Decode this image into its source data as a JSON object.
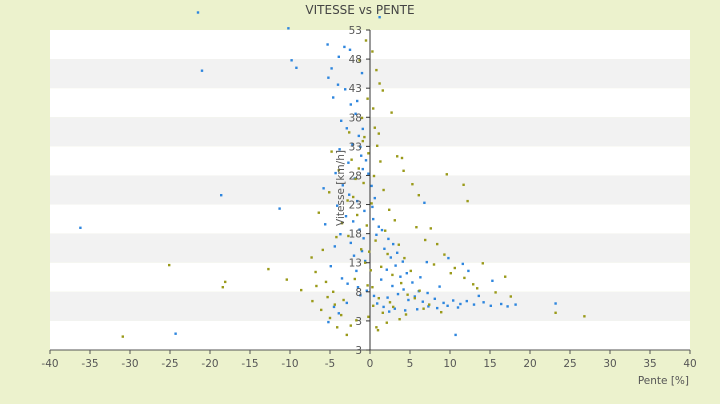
{
  "colors": {
    "background": "#ecf2cd",
    "band_light": "#ffffff",
    "band_dark": "#f2f2f2",
    "axis": "#555555",
    "axis_center": "#333333",
    "text": "#555555",
    "title_text": "#444444",
    "series_blue": "#2e86de",
    "series_olive": "#9a9a1a"
  },
  "chart_data": {
    "type": "scatter",
    "title": "VITESSE vs PENTE",
    "xlabel": "Pente [%]",
    "ylabel": "Vitesse [km/h]",
    "xlim": [
      -40,
      40
    ],
    "x_ticks": [
      "-40",
      "-35",
      "-30",
      "-25",
      "-20",
      "-15",
      "-10",
      "-5",
      "0",
      "5",
      "10",
      "15",
      "20",
      "25",
      "30",
      "35",
      "40"
    ],
    "y_ticks": [
      "3",
      "3",
      "8",
      "13",
      "18",
      "23",
      "28",
      "33",
      "38",
      "43",
      "48",
      "53"
    ],
    "series": [
      {
        "color_key": "series_blue",
        "points": [
          [
            -21.5,
            56
          ],
          [
            -10.2,
            53.3
          ],
          [
            1.2,
            55.2
          ],
          [
            -21,
            46
          ],
          [
            -9.8,
            47.8
          ],
          [
            -9.2,
            46.5
          ],
          [
            -5.3,
            50.5
          ],
          [
            -3.2,
            50.1
          ],
          [
            -2.5,
            49.6
          ],
          [
            -3.9,
            48.4
          ],
          [
            -4.8,
            46.4
          ],
          [
            -5.2,
            44.8
          ],
          [
            -4.0,
            43.6
          ],
          [
            -3.1,
            42.8
          ],
          [
            -4.6,
            41.4
          ],
          [
            -2.4,
            40.2
          ],
          [
            -1.8,
            38.6
          ],
          [
            -3.6,
            37.4
          ],
          [
            -2.9,
            36.1
          ],
          [
            -1.4,
            34.8
          ],
          [
            -2.2,
            33.3
          ],
          [
            -3.8,
            32.5
          ],
          [
            -1.1,
            31.4
          ],
          [
            -2.7,
            30.2
          ],
          [
            -0.9,
            29.1
          ],
          [
            -4.3,
            28.4
          ],
          [
            -1.9,
            27.5
          ],
          [
            -3.4,
            26.3
          ],
          [
            -5.8,
            25.8
          ],
          [
            -2.6,
            24.7
          ],
          [
            -1.6,
            23.6
          ],
          [
            -4.1,
            22.8
          ],
          [
            -0.7,
            21.9
          ],
          [
            -3.0,
            21.0
          ],
          [
            -2.1,
            20.1
          ],
          [
            -5.6,
            19.6
          ],
          [
            -1.3,
            18.7
          ],
          [
            -3.7,
            17.9
          ],
          [
            -0.8,
            17.2
          ],
          [
            -2.4,
            16.4
          ],
          [
            -4.4,
            15.8
          ],
          [
            -1.0,
            15.0
          ],
          [
            0.4,
            20.5
          ],
          [
            1.1,
            19.2
          ],
          [
            0.8,
            17.8
          ],
          [
            1.5,
            18.6
          ],
          [
            2.3,
            17.1
          ],
          [
            2.9,
            16.2
          ],
          [
            1.8,
            15.4
          ],
          [
            3.4,
            14.7
          ],
          [
            2.6,
            13.9
          ],
          [
            4.1,
            13.2
          ],
          [
            3.2,
            12.5
          ],
          [
            2.1,
            11.8
          ],
          [
            4.6,
            11.2
          ],
          [
            3.8,
            10.6
          ],
          [
            1.4,
            10.1
          ],
          [
            5.3,
            9.6
          ],
          [
            2.8,
            9.0
          ],
          [
            4.2,
            8.4
          ],
          [
            6.1,
            8.1
          ],
          [
            3.5,
            7.6
          ],
          [
            5.6,
            7.2
          ],
          [
            7.2,
            7.8
          ],
          [
            2.2,
            7.0
          ],
          [
            4.8,
            6.6
          ],
          [
            6.6,
            6.3
          ],
          [
            8.1,
            6.8
          ],
          [
            9.2,
            6.1
          ],
          [
            10.4,
            6.5
          ],
          [
            11.3,
            5.9
          ],
          [
            12.1,
            6.4
          ],
          [
            13.0,
            5.8
          ],
          [
            14.2,
            6.2
          ],
          [
            15.1,
            5.6
          ],
          [
            16.4,
            5.9
          ],
          [
            17.2,
            5.5
          ],
          [
            18.2,
            5.8
          ],
          [
            23.2,
            6.0
          ],
          [
            11.0,
            5.3
          ],
          [
            9.7,
            5.6
          ],
          [
            8.4,
            5.2
          ],
          [
            7.3,
            5.5
          ],
          [
            5.9,
            5.0
          ],
          [
            4.4,
            4.8
          ],
          [
            3.1,
            5.1
          ],
          [
            2.4,
            4.6
          ],
          [
            1.7,
            5.4
          ],
          [
            0.9,
            6.0
          ],
          [
            0.5,
            7.3
          ],
          [
            -0.4,
            8.2
          ],
          [
            -1.5,
            8.8
          ],
          [
            -2.8,
            9.4
          ],
          [
            -3.5,
            10.3
          ],
          [
            -1.7,
            11.6
          ],
          [
            -4.9,
            12.4
          ],
          [
            -0.6,
            13.3
          ],
          [
            -2.0,
            14.2
          ],
          [
            -18.6,
            24.6
          ],
          [
            -11.3,
            22.3
          ],
          [
            -36.2,
            19.0
          ],
          [
            -24.3,
            0.8
          ],
          [
            -5.2,
            2.8
          ],
          [
            10.7,
            0.6
          ],
          [
            -4.5,
            5.4
          ],
          [
            -2.9,
            6.1
          ],
          [
            -1.2,
            7.4
          ],
          [
            -3.9,
            4.3
          ],
          [
            0.2,
            26.2
          ],
          [
            0.6,
            24.1
          ],
          [
            0.3,
            22.6
          ],
          [
            6.8,
            23.3
          ],
          [
            7.1,
            13.1
          ],
          [
            6.3,
            10.5
          ],
          [
            9.8,
            13.8
          ],
          [
            11.6,
            12.8
          ],
          [
            12.3,
            11.6
          ],
          [
            15.3,
            9.9
          ],
          [
            8.7,
            8.9
          ],
          [
            13.6,
            7.3
          ],
          [
            -0.2,
            28.3
          ],
          [
            -0.5,
            30.6
          ],
          [
            -1.2,
            32.9
          ],
          [
            -0.9,
            36.0
          ],
          [
            -1.6,
            40.8
          ],
          [
            -1.0,
            45.6
          ]
        ]
      },
      {
        "color_key": "series_olive",
        "points": [
          [
            -0.5,
            51.2
          ],
          [
            0.3,
            49.3
          ],
          [
            -1.3,
            47.8
          ],
          [
            0.8,
            46.1
          ],
          [
            1.2,
            43.8
          ],
          [
            1.6,
            42.6
          ],
          [
            -0.3,
            41.2
          ],
          [
            0.4,
            39.5
          ],
          [
            -1.0,
            37.9
          ],
          [
            0.6,
            36.2
          ],
          [
            -0.7,
            34.6
          ],
          [
            0.9,
            33.1
          ],
          [
            -0.2,
            31.8
          ],
          [
            1.3,
            30.4
          ],
          [
            -1.4,
            29.2
          ],
          [
            0.5,
            27.9
          ],
          [
            -0.8,
            26.7
          ],
          [
            1.7,
            25.5
          ],
          [
            -2.1,
            24.3
          ],
          [
            0.2,
            23.2
          ],
          [
            2.4,
            22.1
          ],
          [
            -1.6,
            21.2
          ],
          [
            3.1,
            20.3
          ],
          [
            -0.4,
            19.4
          ],
          [
            1.9,
            18.5
          ],
          [
            -2.7,
            17.6
          ],
          [
            0.7,
            16.8
          ],
          [
            3.6,
            16.1
          ],
          [
            -1.1,
            15.3
          ],
          [
            2.2,
            14.5
          ],
          [
            4.3,
            13.8
          ],
          [
            -0.6,
            13.0
          ],
          [
            1.4,
            12.3
          ],
          [
            5.1,
            11.6
          ],
          [
            2.8,
            10.9
          ],
          [
            -1.9,
            10.2
          ],
          [
            3.9,
            9.5
          ],
          [
            0.3,
            8.8
          ],
          [
            6.2,
            8.2
          ],
          [
            4.7,
            7.5
          ],
          [
            1.1,
            6.9
          ],
          [
            2.5,
            6.2
          ],
          [
            7.4,
            5.8
          ],
          [
            -3.3,
            6.6
          ],
          [
            -4.6,
            8.0
          ],
          [
            -5.5,
            9.7
          ],
          [
            -6.8,
            11.4
          ],
          [
            -7.3,
            13.9
          ],
          [
            -5.9,
            15.2
          ],
          [
            -4.2,
            17.4
          ],
          [
            -3.5,
            19.8
          ],
          [
            -6.4,
            21.6
          ],
          [
            -2.8,
            23.7
          ],
          [
            -5.1,
            25.1
          ],
          [
            -1.8,
            27.4
          ],
          [
            -3.9,
            28.9
          ],
          [
            -2.3,
            30.7
          ],
          [
            -4.8,
            32.1
          ],
          [
            -0.9,
            33.9
          ],
          [
            -2.6,
            35.4
          ],
          [
            2.7,
            38.8
          ],
          [
            1.1,
            35.2
          ],
          [
            3.4,
            31.3
          ],
          [
            4.2,
            28.8
          ],
          [
            5.3,
            26.5
          ],
          [
            6.1,
            24.6
          ],
          [
            7.6,
            18.9
          ],
          [
            8.4,
            16.2
          ],
          [
            9.3,
            14.4
          ],
          [
            10.6,
            12.1
          ],
          [
            11.8,
            10.4
          ],
          [
            12.9,
            9.3
          ],
          [
            14.1,
            12.9
          ],
          [
            16.9,
            10.6
          ],
          [
            12.2,
            23.6
          ],
          [
            11.7,
            26.4
          ],
          [
            9.6,
            28.2
          ],
          [
            4.0,
            31.0
          ],
          [
            5.8,
            19.1
          ],
          [
            6.9,
            16.9
          ],
          [
            8.0,
            12.7
          ],
          [
            10.1,
            11.2
          ],
          [
            13.4,
            8.6
          ],
          [
            15.7,
            7.9
          ],
          [
            17.6,
            7.2
          ],
          [
            23.2,
            4.4
          ],
          [
            26.8,
            3.8
          ],
          [
            -18.1,
            9.7
          ],
          [
            -18.4,
            8.8
          ],
          [
            -30.9,
            0.3
          ],
          [
            -25.1,
            12.6
          ],
          [
            -12.7,
            11.9
          ],
          [
            -10.4,
            10.1
          ],
          [
            -8.6,
            8.3
          ],
          [
            -7.2,
            6.4
          ],
          [
            -6.1,
            4.9
          ],
          [
            -5.0,
            3.5
          ],
          [
            -4.1,
            1.9
          ],
          [
            -2.9,
            0.6
          ],
          [
            1.0,
            1.4
          ],
          [
            2.1,
            2.7
          ],
          [
            3.7,
            3.3
          ],
          [
            -0.1,
            14.9
          ],
          [
            0.1,
            11.7
          ],
          [
            -0.3,
            9.1
          ],
          [
            0.4,
            5.6
          ],
          [
            -0.2,
            3.7
          ],
          [
            0.8,
            1.9
          ],
          [
            1.6,
            4.4
          ],
          [
            2.9,
            5.4
          ],
          [
            4.5,
            4.1
          ],
          [
            5.6,
            6.9
          ],
          [
            6.7,
            5.1
          ],
          [
            8.9,
            4.5
          ],
          [
            -1.7,
            3.1
          ],
          [
            -2.4,
            2.2
          ],
          [
            -3.6,
            4.0
          ],
          [
            -4.4,
            5.8
          ],
          [
            -5.3,
            7.1
          ],
          [
            -6.7,
            9.0
          ]
        ]
      }
    ]
  }
}
